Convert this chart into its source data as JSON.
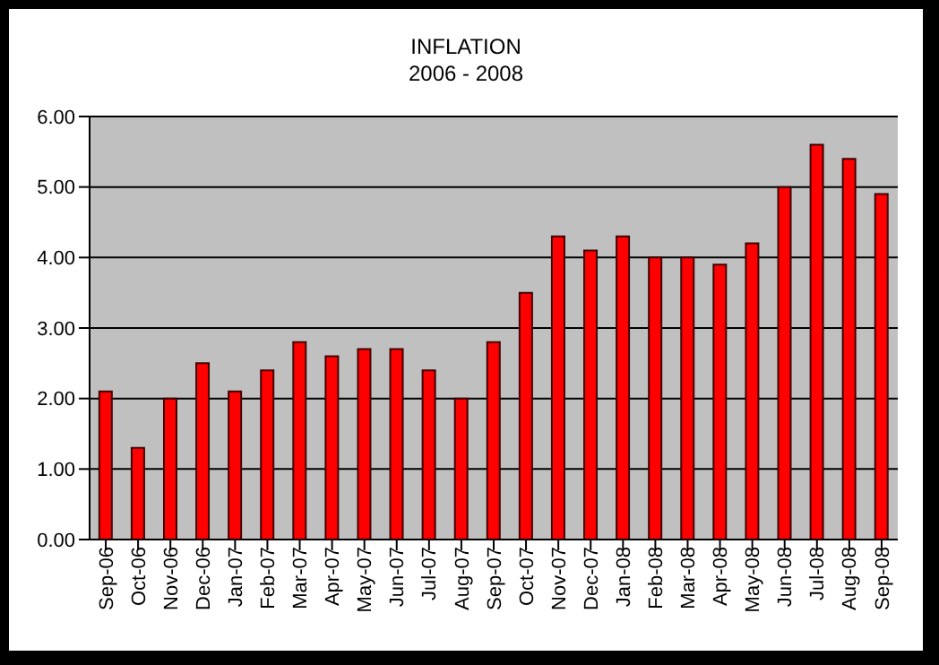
{
  "chart_data": {
    "type": "bar",
    "title": "INFLATION",
    "subtitle": "2006 - 2008",
    "categories": [
      "Sep-06",
      "Oct-06",
      "Nov-06",
      "Dec-06",
      "Jan-07",
      "Feb-07",
      "Mar-07",
      "Apr-07",
      "May-07",
      "Jun-07",
      "Jul-07",
      "Aug-07",
      "Sep-07",
      "Oct-07",
      "Nov-07",
      "Dec-07",
      "Jan-08",
      "Feb-08",
      "Mar-08",
      "Apr-08",
      "May-08",
      "Jun-08",
      "Jul-08",
      "Aug-08",
      "Sep-08"
    ],
    "values": [
      2.1,
      1.3,
      2.0,
      2.5,
      2.1,
      2.4,
      2.8,
      2.6,
      2.7,
      2.7,
      2.4,
      2.0,
      2.8,
      3.5,
      4.3,
      4.1,
      4.3,
      4.0,
      4.0,
      3.9,
      4.2,
      5.0,
      5.6,
      5.4,
      4.9
    ],
    "color": "#ff0000",
    "ylim": [
      0,
      6
    ],
    "yticks": [
      {
        "value": 0,
        "label": "0.00"
      },
      {
        "value": 1,
        "label": "1.00"
      },
      {
        "value": 2,
        "label": "2.00"
      },
      {
        "value": 3,
        "label": "3.00"
      },
      {
        "value": 4,
        "label": "4.00"
      },
      {
        "value": 5,
        "label": "5.00"
      },
      {
        "value": 6,
        "label": "6.00"
      }
    ],
    "grid": "y",
    "legend": false
  }
}
